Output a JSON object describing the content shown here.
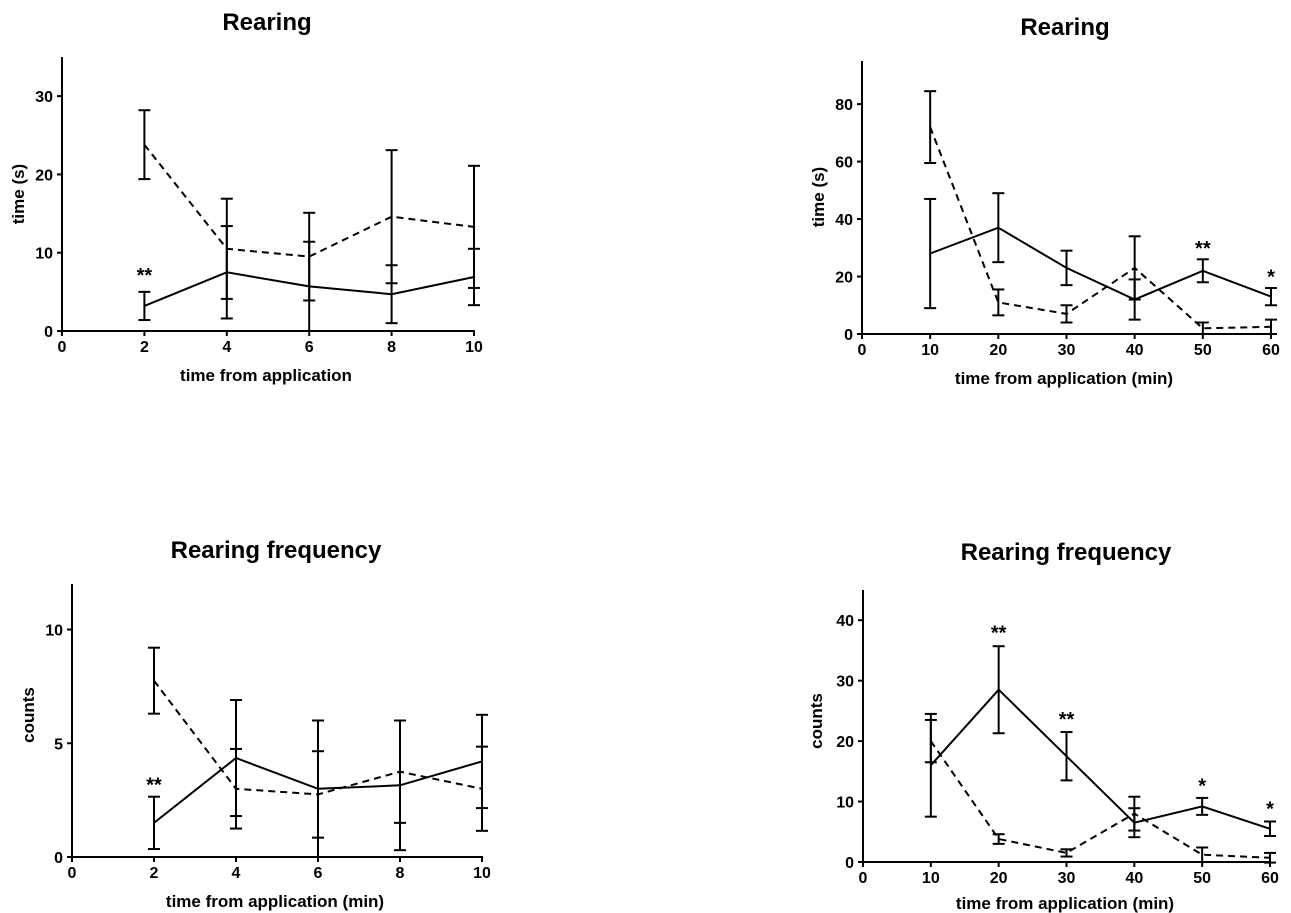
{
  "chart_data": [
    {
      "type": "line",
      "title": "Rearing",
      "xlabel": "time from application",
      "ylabel": "time (s)",
      "xlim": [
        0,
        10
      ],
      "ylim": [
        0,
        35
      ],
      "xticks": [
        "0",
        "2",
        "4",
        "6",
        "8",
        "10"
      ],
      "yticks": [
        "0",
        "10",
        "20",
        "30"
      ],
      "grid": false,
      "series": [
        {
          "style": "solid",
          "x": [
            2,
            4,
            6,
            8,
            10
          ],
          "y": [
            3.2,
            7.5,
            5.7,
            4.7,
            6.9
          ],
          "err": [
            1.8,
            5.9,
            5.7,
            3.7,
            3.6
          ]
        },
        {
          "style": "dashed",
          "x": [
            2,
            4,
            6,
            8,
            10
          ],
          "y": [
            23.8,
            10.5,
            9.5,
            14.6,
            13.3
          ],
          "err": [
            4.4,
            6.4,
            5.6,
            8.5,
            7.8
          ]
        }
      ],
      "annotations": [
        {
          "x": 2,
          "y": 5.9,
          "text": "**"
        }
      ]
    },
    {
      "type": "line",
      "title": "Rearing",
      "xlabel": "time from application (min)",
      "ylabel": "time (s)",
      "xlim": [
        0,
        60
      ],
      "ylim": [
        0,
        95
      ],
      "xticks": [
        "0",
        "10",
        "20",
        "30",
        "40",
        "50",
        "60"
      ],
      "yticks": [
        "0",
        "20",
        "40",
        "60",
        "80"
      ],
      "grid": false,
      "series": [
        {
          "style": "solid",
          "x": [
            10,
            20,
            30,
            40,
            50,
            60
          ],
          "y": [
            28,
            37,
            23,
            12,
            22,
            13
          ],
          "err": [
            19,
            12,
            6,
            7,
            4,
            3
          ]
        },
        {
          "style": "dashed",
          "x": [
            10,
            20,
            30,
            40,
            50,
            60
          ],
          "y": [
            72,
            11,
            7,
            23,
            2,
            2.5
          ],
          "err": [
            12.5,
            4.5,
            3,
            11,
            2,
            2.5
          ]
        }
      ],
      "annotations": [
        {
          "x": 50,
          "y": 26.5,
          "text": "**"
        },
        {
          "x": 60,
          "y": 16.5,
          "text": "*"
        }
      ]
    },
    {
      "type": "line",
      "title": "Rearing frequency",
      "xlabel": "time from application (min)",
      "ylabel": "counts",
      "xlim": [
        0,
        10
      ],
      "ylim": [
        0,
        12
      ],
      "xticks": [
        "0",
        "2",
        "4",
        "6",
        "8",
        "10"
      ],
      "yticks": [
        "0",
        "5",
        "10"
      ],
      "grid": false,
      "series": [
        {
          "style": "solid",
          "x": [
            2,
            4,
            6,
            8,
            10
          ],
          "y": [
            1.5,
            4.35,
            3.0,
            3.15,
            4.2
          ],
          "err": [
            1.15,
            2.55,
            3.0,
            2.85,
            2.05
          ]
        },
        {
          "style": "dashed",
          "x": [
            2,
            4,
            6,
            8,
            10
          ],
          "y": [
            7.75,
            3.0,
            2.75,
            3.75,
            3.0
          ],
          "err": [
            1.45,
            1.75,
            1.9,
            2.25,
            1.85
          ]
        }
      ],
      "annotations": [
        {
          "x": 2,
          "y": 2.75,
          "text": "**"
        }
      ]
    },
    {
      "type": "line",
      "title": "Rearing frequency",
      "xlabel": "time from application (min)",
      "ylabel": "counts",
      "xlim": [
        0,
        60
      ],
      "ylim": [
        0,
        45
      ],
      "xticks": [
        "0",
        "10",
        "20",
        "30",
        "40",
        "50",
        "60"
      ],
      "yticks": [
        "0",
        "10",
        "20",
        "30",
        "40"
      ],
      "grid": false,
      "series": [
        {
          "style": "solid",
          "x": [
            10,
            20,
            30,
            40,
            50,
            60
          ],
          "y": [
            16,
            28.5,
            17.5,
            6.5,
            9.2,
            5.5
          ],
          "err": [
            8.5,
            7.2,
            4,
            2.4,
            1.4,
            1.2
          ]
        },
        {
          "style": "dashed",
          "x": [
            10,
            20,
            30,
            40,
            50,
            60
          ],
          "y": [
            20,
            3.8,
            1.5,
            8,
            1.2,
            0.7
          ],
          "err": [
            3.5,
            0.8,
            0.6,
            2.8,
            1.2,
            0.8
          ]
        }
      ],
      "annotations": [
        {
          "x": 20,
          "y": 36.3,
          "text": "**"
        },
        {
          "x": 30,
          "y": 22.0,
          "text": "**"
        },
        {
          "x": 50,
          "y": 11.0,
          "text": "*"
        },
        {
          "x": 60,
          "y": 7.2,
          "text": "*"
        }
      ]
    }
  ]
}
